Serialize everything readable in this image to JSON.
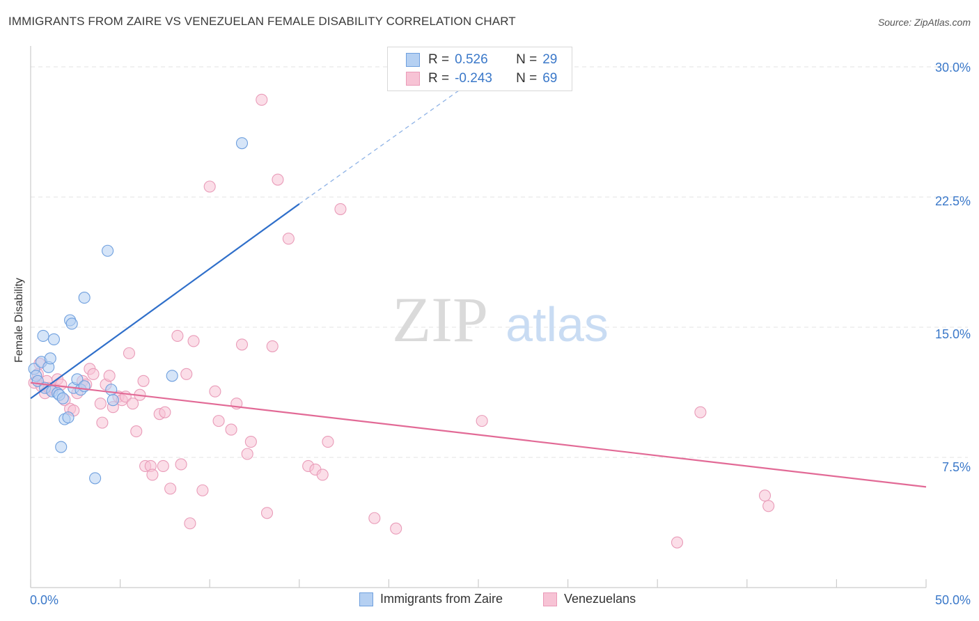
{
  "title": "IMMIGRANTS FROM ZAIRE VS VENEZUELAN FEMALE DISABILITY CORRELATION CHART",
  "source": "Source: ZipAtlas.com",
  "watermark": {
    "part1": "ZIP",
    "part2": "atlas"
  },
  "legend": {
    "row1": {
      "r_label": "R =",
      "r_value": "0.526",
      "n_label": "N =",
      "n_value": "29"
    },
    "row2": {
      "r_label": "R =",
      "r_value": "-0.243",
      "n_label": "N =",
      "n_value": "69"
    }
  },
  "bottom_legend": {
    "series1": "Immigrants from Zaire",
    "series2": "Venezuelans"
  },
  "y_ticks": [
    "30.0%",
    "22.5%",
    "15.0%",
    "7.5%"
  ],
  "x_ticks": {
    "min": "0.0%",
    "max": "50.0%"
  },
  "colors": {
    "blue": "#3a78c9",
    "blue_fill": "#b5d0f2",
    "blue_line": "#2f6fca",
    "pink": "#e46f9a",
    "pink_fill": "#f7c3d5",
    "pink_line": "#e26a96"
  },
  "chart_data": {
    "type": "scatter",
    "ylabel": "Female Disability",
    "xlabel": "",
    "xlim": [
      0,
      50
    ],
    "ylim": [
      0,
      30.8
    ],
    "y_ticks": [
      7.5,
      15.0,
      22.5,
      30.0
    ],
    "series": [
      {
        "name": "Immigrants from Zaire",
        "trend": {
          "x0": 0,
          "y0": 10.9,
          "x1": 15,
          "y1": 22.1,
          "dashed_to_x": 24,
          "dashed_to_y": 28.7
        },
        "points": [
          [
            0.2,
            12.6
          ],
          [
            0.3,
            12.2
          ],
          [
            0.4,
            11.9
          ],
          [
            0.6,
            13.0
          ],
          [
            0.7,
            14.5
          ],
          [
            1.0,
            12.7
          ],
          [
            1.1,
            13.2
          ],
          [
            1.3,
            14.3
          ],
          [
            0.8,
            11.5
          ],
          [
            1.2,
            11.3
          ],
          [
            1.5,
            11.2
          ],
          [
            1.6,
            11.1
          ],
          [
            1.8,
            10.9
          ],
          [
            1.7,
            8.1
          ],
          [
            1.9,
            9.7
          ],
          [
            2.1,
            9.8
          ],
          [
            2.2,
            15.4
          ],
          [
            2.3,
            15.2
          ],
          [
            2.4,
            11.5
          ],
          [
            2.6,
            12.0
          ],
          [
            2.8,
            11.4
          ],
          [
            3.0,
            11.6
          ],
          [
            3.0,
            16.7
          ],
          [
            3.6,
            6.3
          ],
          [
            4.3,
            19.4
          ],
          [
            4.5,
            11.4
          ],
          [
            4.6,
            10.8
          ],
          [
            7.9,
            12.2
          ],
          [
            11.8,
            25.6
          ]
        ]
      },
      {
        "name": "Venezuelans",
        "trend": {
          "x0": 0,
          "y0": 11.8,
          "x1": 50,
          "y1": 5.8
        },
        "points": [
          [
            0.2,
            11.8
          ],
          [
            0.4,
            12.3
          ],
          [
            0.5,
            12.9
          ],
          [
            0.6,
            11.6
          ],
          [
            0.8,
            11.2
          ],
          [
            0.9,
            11.9
          ],
          [
            1.0,
            11.5
          ],
          [
            1.1,
            11.4
          ],
          [
            1.3,
            11.5
          ],
          [
            1.5,
            12.0
          ],
          [
            1.7,
            11.7
          ],
          [
            1.9,
            10.8
          ],
          [
            2.2,
            10.3
          ],
          [
            2.4,
            10.2
          ],
          [
            2.6,
            11.2
          ],
          [
            2.9,
            11.9
          ],
          [
            3.1,
            11.7
          ],
          [
            3.3,
            12.6
          ],
          [
            3.5,
            12.3
          ],
          [
            3.9,
            10.6
          ],
          [
            4.0,
            9.5
          ],
          [
            4.2,
            11.7
          ],
          [
            4.4,
            12.2
          ],
          [
            4.6,
            10.4
          ],
          [
            4.9,
            11.0
          ],
          [
            5.1,
            10.8
          ],
          [
            5.3,
            11.0
          ],
          [
            5.5,
            13.5
          ],
          [
            5.7,
            10.6
          ],
          [
            5.9,
            9.0
          ],
          [
            6.1,
            11.1
          ],
          [
            6.3,
            11.9
          ],
          [
            6.4,
            7.0
          ],
          [
            6.7,
            7.0
          ],
          [
            6.8,
            6.5
          ],
          [
            7.2,
            10.0
          ],
          [
            7.4,
            7.0
          ],
          [
            7.5,
            10.1
          ],
          [
            7.8,
            5.7
          ],
          [
            8.2,
            14.5
          ],
          [
            8.4,
            7.1
          ],
          [
            8.7,
            12.3
          ],
          [
            8.9,
            3.7
          ],
          [
            9.1,
            14.2
          ],
          [
            9.6,
            5.6
          ],
          [
            10.0,
            23.1
          ],
          [
            10.3,
            11.3
          ],
          [
            10.5,
            9.6
          ],
          [
            11.2,
            9.1
          ],
          [
            11.5,
            10.6
          ],
          [
            11.8,
            14.0
          ],
          [
            12.1,
            7.7
          ],
          [
            12.3,
            8.4
          ],
          [
            12.9,
            28.1
          ],
          [
            13.2,
            4.3
          ],
          [
            13.5,
            13.9
          ],
          [
            13.8,
            23.5
          ],
          [
            14.4,
            20.1
          ],
          [
            15.5,
            7.0
          ],
          [
            15.9,
            6.8
          ],
          [
            16.3,
            6.5
          ],
          [
            16.6,
            8.4
          ],
          [
            17.3,
            21.8
          ],
          [
            19.2,
            4.0
          ],
          [
            20.4,
            3.4
          ],
          [
            25.2,
            9.6
          ],
          [
            36.1,
            2.6
          ],
          [
            37.4,
            10.1
          ],
          [
            41.0,
            5.3
          ],
          [
            41.2,
            4.7
          ]
        ]
      }
    ]
  }
}
